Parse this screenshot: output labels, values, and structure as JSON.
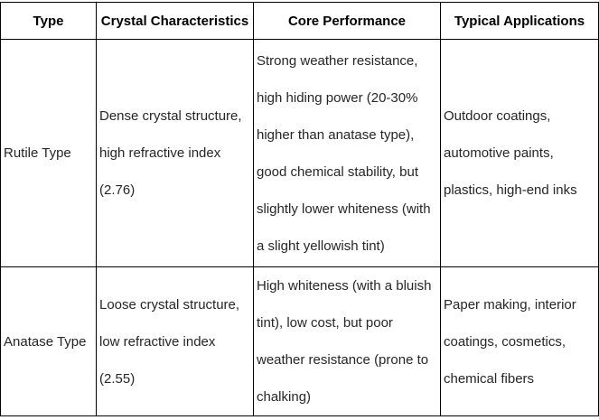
{
  "colors": {
    "border": "#000000",
    "header_text": "#000000",
    "body_text": "#262626",
    "background": "#ffffff"
  },
  "table": {
    "headers": [
      "Type",
      "Crystal Characteristics",
      "Core Performance",
      "Typical Applications"
    ],
    "rows": [
      {
        "type": "Rutile Type",
        "crystal": "Dense crystal structure,\nhigh refractive index\n(2.76)",
        "core": "Strong weather resistance,\nhigh hiding power (20-30%\nhigher than anatase type),\ngood chemical stability, but\nslightly lower whiteness (with\na slight yellowish tint)",
        "applications": "Outdoor coatings,\nautomotive paints,\nplastics, high-end inks"
      },
      {
        "type": "Anatase Type",
        "crystal": "Loose crystal structure,\nlow refractive index\n(2.55)",
        "core": "High whiteness (with a bluish\ntint), low cost, but poor\nweather resistance (prone to\nchalking)",
        "applications": "Paper making, interior\ncoatings, cosmetics,\nchemical fibers"
      }
    ]
  }
}
